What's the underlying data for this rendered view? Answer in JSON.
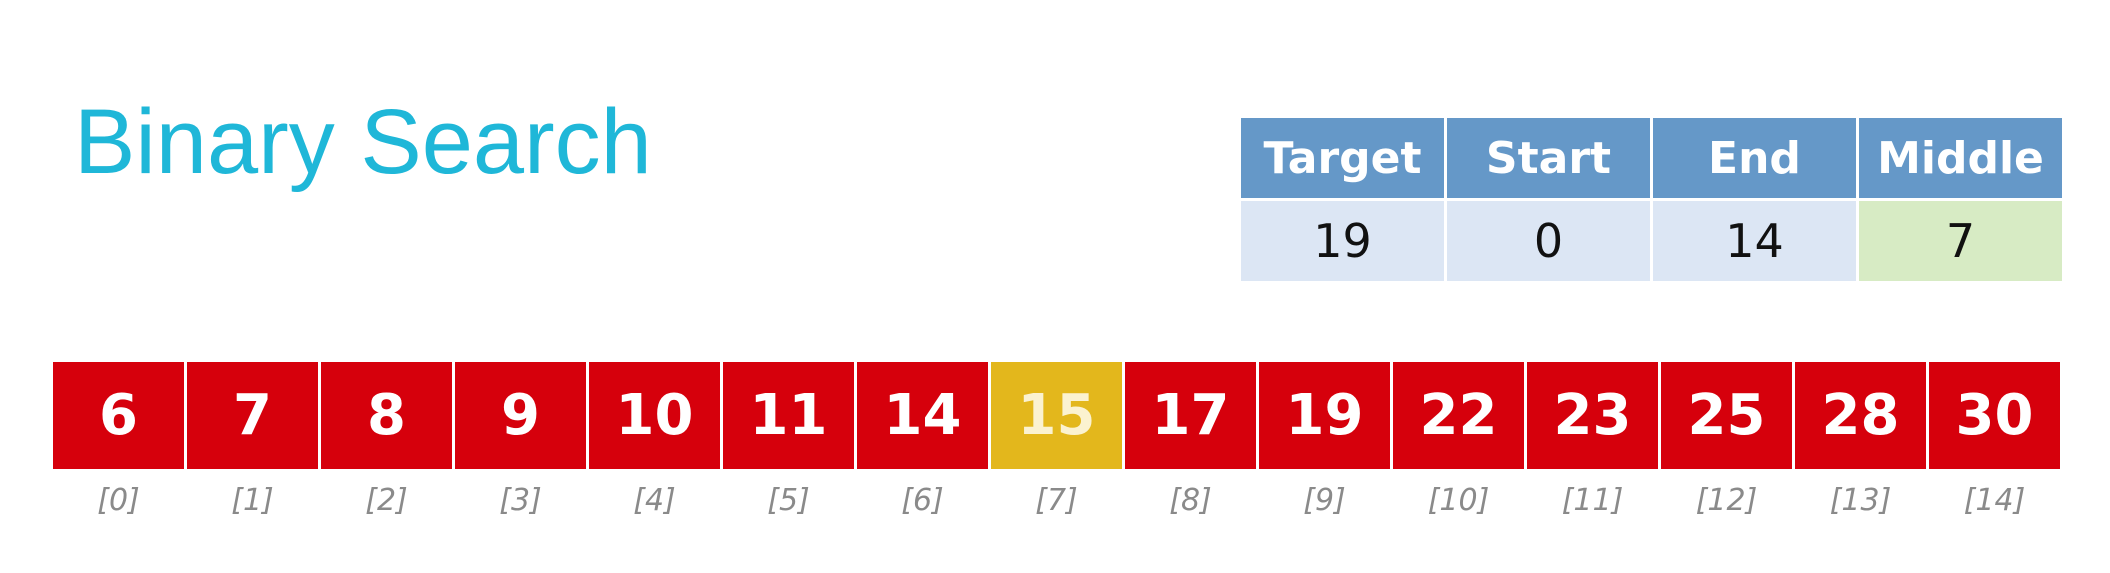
{
  "title": "Binary Search",
  "variables": {
    "headers": [
      "Target",
      "Start",
      "End",
      "Middle"
    ],
    "values": [
      "19",
      "0",
      "14",
      "7"
    ]
  },
  "array": [
    {
      "value": "6",
      "index": "[0]"
    },
    {
      "value": "7",
      "index": "[1]"
    },
    {
      "value": "8",
      "index": "[2]"
    },
    {
      "value": "9",
      "index": "[3]"
    },
    {
      "value": "10",
      "index": "[4]"
    },
    {
      "value": "11",
      "index": "[5]"
    },
    {
      "value": "14",
      "index": "[6]"
    },
    {
      "value": "15",
      "index": "[7]"
    },
    {
      "value": "17",
      "index": "[8]"
    },
    {
      "value": "19",
      "index": "[9]"
    },
    {
      "value": "22",
      "index": "[10]"
    },
    {
      "value": "23",
      "index": "[11]"
    },
    {
      "value": "25",
      "index": "[12]"
    },
    {
      "value": "28",
      "index": "[13]"
    },
    {
      "value": "30",
      "index": "[14]"
    }
  ],
  "highlight_index": 7,
  "colors": {
    "title": "#1fb7d8",
    "header_bg": "#6598c8",
    "value_bg": "#dce6f4",
    "middle_value_bg": "#d7ebc4",
    "cell_bg": "#d6000c",
    "middle_cell_bg": "#e3b71c"
  }
}
